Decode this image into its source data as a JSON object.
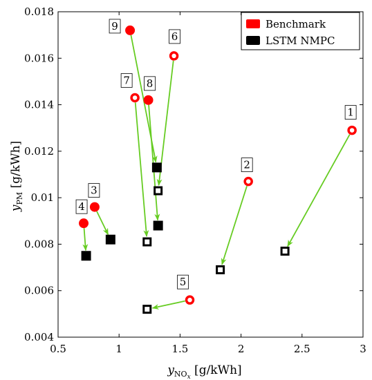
{
  "chart_data": {
    "type": "scatter",
    "xlabel": "y_NO_x [g/kWh]",
    "ylabel": "y_PM [g/kWh]",
    "xlim": [
      0.5,
      3
    ],
    "ylim": [
      0.004,
      0.018
    ],
    "x_ticks": [
      "0.5",
      "1",
      "1.5",
      "2",
      "2.5",
      "3"
    ],
    "y_ticks": [
      "0.004",
      "0.006",
      "0.008",
      "0.01",
      "0.012",
      "0.014",
      "0.016",
      "0.018"
    ],
    "grid": false,
    "legend_position": "top-right",
    "series": [
      {
        "name": "Benchmark",
        "color": "#ff0000",
        "points": [
          {
            "label": "1",
            "x": 2.91,
            "y": 0.0129,
            "marker": "ring"
          },
          {
            "label": "2",
            "x": 2.06,
            "y": 0.0107,
            "marker": "ring"
          },
          {
            "label": "3",
            "x": 0.8,
            "y": 0.0096,
            "marker": "filled"
          },
          {
            "label": "4",
            "x": 0.71,
            "y": 0.0089,
            "marker": "filled"
          },
          {
            "label": "5",
            "x": 1.58,
            "y": 0.0056,
            "marker": "ring"
          },
          {
            "label": "6",
            "x": 1.45,
            "y": 0.0161,
            "marker": "ring"
          },
          {
            "label": "7",
            "x": 1.13,
            "y": 0.0143,
            "marker": "ring"
          },
          {
            "label": "8",
            "x": 1.24,
            "y": 0.0142,
            "marker": "filled"
          },
          {
            "label": "9",
            "x": 1.09,
            "y": 0.0172,
            "marker": "filled"
          }
        ]
      },
      {
        "name": "LSTM NMPC",
        "color": "#000000",
        "points": [
          {
            "label": "1",
            "x": 2.36,
            "y": 0.0077,
            "marker": "hollow"
          },
          {
            "label": "2",
            "x": 1.83,
            "y": 0.0069,
            "marker": "hollow"
          },
          {
            "label": "3",
            "x": 0.93,
            "y": 0.0082,
            "marker": "filled"
          },
          {
            "label": "4",
            "x": 0.73,
            "y": 0.0075,
            "marker": "filled"
          },
          {
            "label": "5",
            "x": 1.23,
            "y": 0.0052,
            "marker": "hollow"
          },
          {
            "label": "6",
            "x": 1.32,
            "y": 0.0103,
            "marker": "hollow"
          },
          {
            "label": "7",
            "x": 1.23,
            "y": 0.0081,
            "marker": "hollow"
          },
          {
            "label": "8",
            "x": 1.32,
            "y": 0.0088,
            "marker": "filled"
          },
          {
            "label": "9",
            "x": 1.31,
            "y": 0.0113,
            "marker": "filled"
          }
        ]
      }
    ],
    "arrow_color": "#66cc22"
  }
}
